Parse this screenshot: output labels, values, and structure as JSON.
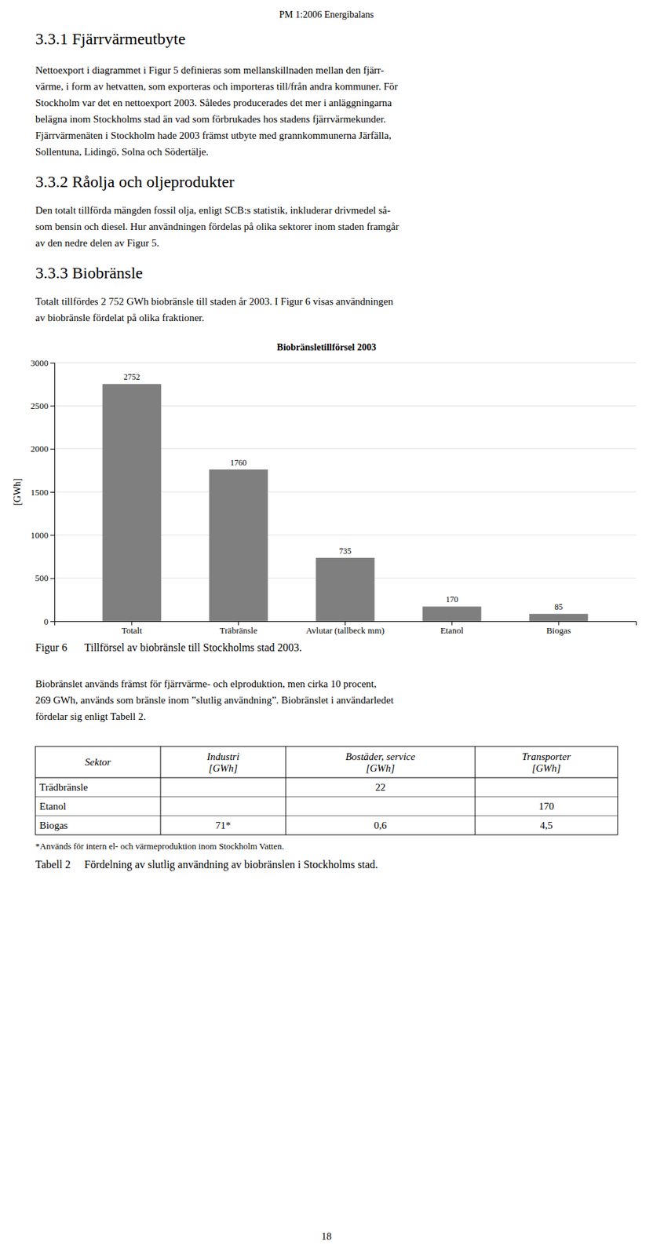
{
  "page_title": "PM 1:2006 Energibalans",
  "section_331_title": "3.3.1  Fjärrvärmeutbyte",
  "lines_331": [
    "Nettoexport i diagrammet i Figur 5 definieras som mellanskillnaden mellan den fjärr-",
    "värme, i form av hetvatten, som exporteras och importeras till/från andra kommuner. För",
    "Stockholm var det en nettoexport 2003. Således producerades det mer i anläggningarna",
    "belägna inom Stockholms stad än vad som förbrukades hos stadens fjärrvärmekunder.",
    "Fjärrvärmenäten i Stockholm hade 2003 främst utbyte med grannkommunerna Järfälla,",
    "Sollentuna, Lidingö, Solna och Södertälje."
  ],
  "section_332_title": "3.3.2  Råolja och oljeprodukter",
  "lines_332": [
    "Den totalt tillförda mängden fossil olja, enligt SCB:s statistik, inkluderar drivmedel så-",
    "som bensin och diesel. Hur användningen fördelas på olika sektorer inom staden framgår",
    "av den nedre delen av Figur 5."
  ],
  "section_333_title": "3.3.3  Biobränsle",
  "lines_333": [
    "Totalt tillfördes 2 752 GWh biobränsle till staden år 2003. I Figur 6 visas användningen",
    "av biobränsle fördelat på olika fraktioner."
  ],
  "chart_data": {
    "type": "bar",
    "title": "Biobränsletillförsel 2003",
    "categories": [
      "Totalt",
      "Träbränsle",
      "Avlutar (tallbeck mm)",
      "Etanol",
      "Biogas"
    ],
    "values": [
      2752,
      1760,
      735,
      170,
      85
    ],
    "color": "#7f7f7f",
    "ylabel": "[GWh]",
    "ylim": [
      0,
      3000
    ],
    "yticks": [
      0,
      500,
      1000,
      1500,
      2000,
      2500,
      3000
    ],
    "grid": true,
    "data_labels": true
  },
  "figure_caption": {
    "label": "Figur 6",
    "text": "Tillförsel av biobränsle till Stockholms stad 2003."
  },
  "lines_after": [
    "Biobränslet används främst för fjärrvärme- och elproduktion, men cirka 10 procent,",
    "269 GWh, används som bränsle inom ”slutlig användning”. Biobränslet i användarledet",
    "fördelar sig enligt Tabell 2."
  ],
  "table": {
    "headers": [
      "Sektor",
      "Industri\n[GWh]",
      "Bostäder, service\n[GWh]",
      "Transporter\n[GWh]"
    ],
    "rows": [
      [
        "Trädbränsle",
        null,
        "22",
        null
      ],
      [
        "Etanol",
        null,
        null,
        "170"
      ],
      [
        "Biogas",
        "71*",
        "0,6",
        "4,5"
      ]
    ],
    "footnote": "*Används för intern el- och värmeproduktion inom Stockholm Vatten."
  },
  "table_caption": {
    "label": "Tabell 2",
    "text": "Fördelning av slutlig användning av biobränslen i Stockholms stad."
  },
  "page_number": "18"
}
